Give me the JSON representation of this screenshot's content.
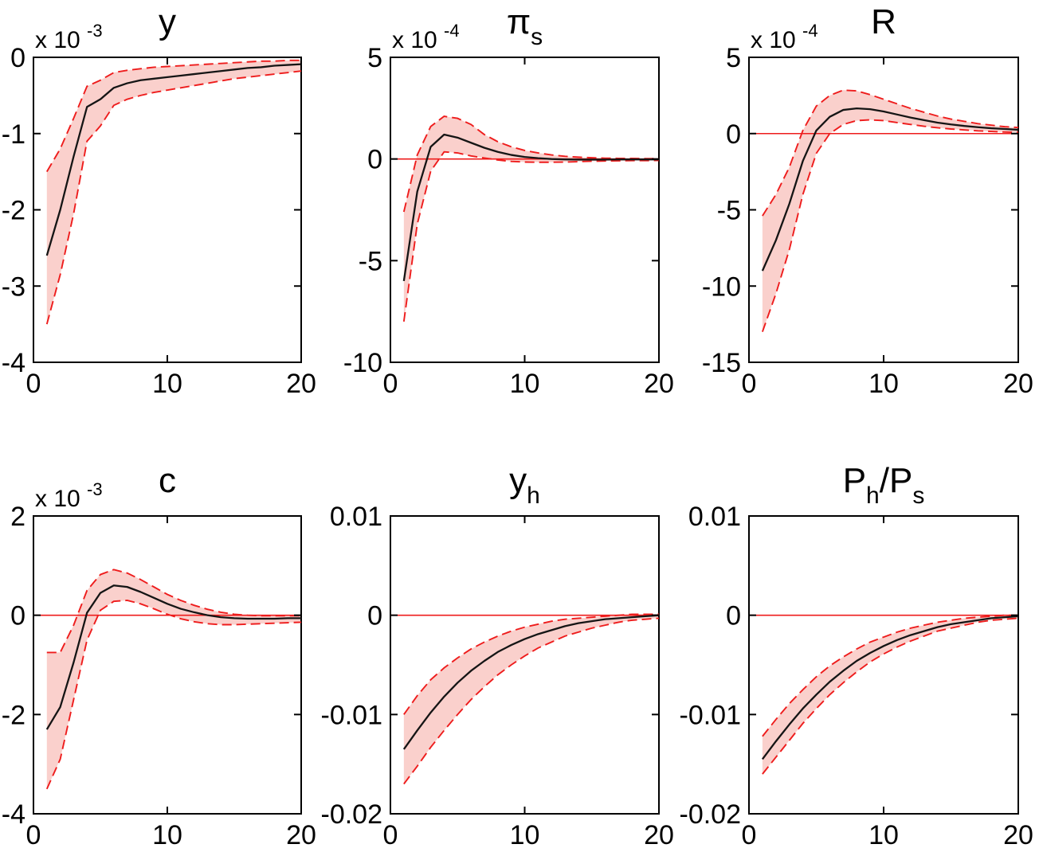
{
  "style": {
    "background": "#ffffff",
    "axis_color": "#000000",
    "tick_label_color": "#000000",
    "median_color": "#151515",
    "band_edge_color": "#ee1c1c",
    "band_fill_color": "#fad0cc",
    "zero_line_color": "#ee1c1c"
  },
  "chart_data": [
    {
      "id": "y",
      "type": "line",
      "title_parts": [
        {
          "text": "y",
          "sub": false
        }
      ],
      "scale_label": {
        "base": "x 10",
        "exponent": "-3"
      },
      "xlim": [
        0,
        20
      ],
      "ylim": [
        -4,
        0
      ],
      "xticks": [
        {
          "v": 0,
          "label": "0"
        },
        {
          "v": 10,
          "label": "10"
        },
        {
          "v": 20,
          "label": "20"
        }
      ],
      "yticks": [
        {
          "v": 0,
          "label": "0"
        },
        {
          "v": -1,
          "label": "-1"
        },
        {
          "v": -2,
          "label": "-2"
        },
        {
          "v": -3,
          "label": "-3"
        },
        {
          "v": -4,
          "label": "-4"
        }
      ],
      "zero_line": false,
      "x": [
        1,
        2,
        3,
        4,
        5,
        6,
        7,
        8,
        9,
        10,
        11,
        12,
        13,
        14,
        15,
        16,
        17,
        18,
        19,
        20
      ],
      "series": [
        {
          "name": "median",
          "style": "solid-black",
          "values": [
            -2.6,
            -2.0,
            -1.3,
            -0.65,
            -0.55,
            -0.4,
            -0.34,
            -0.3,
            -0.28,
            -0.26,
            -0.24,
            -0.22,
            -0.2,
            -0.18,
            -0.16,
            -0.14,
            -0.13,
            -0.11,
            -0.1,
            -0.09
          ]
        },
        {
          "name": "lower-band",
          "style": "dashed-red",
          "values": [
            -3.5,
            -2.85,
            -2.05,
            -1.1,
            -0.9,
            -0.63,
            -0.55,
            -0.5,
            -0.46,
            -0.43,
            -0.4,
            -0.37,
            -0.34,
            -0.31,
            -0.28,
            -0.26,
            -0.24,
            -0.22,
            -0.2,
            -0.18
          ]
        },
        {
          "name": "upper-band",
          "style": "dashed-red",
          "values": [
            -1.5,
            -1.2,
            -0.8,
            -0.38,
            -0.3,
            -0.2,
            -0.17,
            -0.15,
            -0.13,
            -0.12,
            -0.11,
            -0.1,
            -0.09,
            -0.08,
            -0.07,
            -0.06,
            -0.05,
            -0.05,
            -0.04,
            -0.04
          ]
        }
      ]
    },
    {
      "id": "pi_s",
      "type": "line",
      "title_parts": [
        {
          "text": "π",
          "sub": false
        },
        {
          "text": "s",
          "sub": true
        }
      ],
      "scale_label": {
        "base": "x 10",
        "exponent": "-4"
      },
      "xlim": [
        0,
        20
      ],
      "ylim": [
        -10,
        5
      ],
      "xticks": [
        {
          "v": 0,
          "label": "0"
        },
        {
          "v": 10,
          "label": "10"
        },
        {
          "v": 20,
          "label": "20"
        }
      ],
      "yticks": [
        {
          "v": 5,
          "label": "5"
        },
        {
          "v": 0,
          "label": "0"
        },
        {
          "v": -5,
          "label": "-5"
        },
        {
          "v": -10,
          "label": "-10"
        }
      ],
      "zero_line": true,
      "x": [
        1,
        2,
        3,
        4,
        5,
        6,
        7,
        8,
        9,
        10,
        11,
        12,
        13,
        14,
        15,
        16,
        17,
        18,
        19,
        20
      ],
      "series": [
        {
          "name": "median",
          "style": "solid-black",
          "values": [
            -6.0,
            -1.6,
            0.6,
            1.2,
            1.05,
            0.8,
            0.55,
            0.35,
            0.2,
            0.1,
            0.04,
            0.0,
            -0.02,
            -0.03,
            -0.03,
            -0.03,
            -0.02,
            -0.02,
            -0.02,
            -0.02
          ]
        },
        {
          "name": "lower-band",
          "style": "dashed-red",
          "values": [
            -8.0,
            -3.2,
            -0.6,
            0.35,
            0.3,
            0.15,
            0.05,
            -0.05,
            -0.12,
            -0.15,
            -0.16,
            -0.16,
            -0.15,
            -0.13,
            -0.11,
            -0.1,
            -0.09,
            -0.08,
            -0.08,
            -0.07
          ]
        },
        {
          "name": "upper-band",
          "style": "dashed-red",
          "values": [
            -2.6,
            0.2,
            1.6,
            2.1,
            2.0,
            1.7,
            1.2,
            0.85,
            0.6,
            0.42,
            0.3,
            0.2,
            0.13,
            0.09,
            0.06,
            0.04,
            0.03,
            0.03,
            0.02,
            0.02
          ]
        }
      ]
    },
    {
      "id": "R",
      "type": "line",
      "title_parts": [
        {
          "text": "R",
          "sub": false
        }
      ],
      "scale_label": {
        "base": "x 10",
        "exponent": "-4"
      },
      "xlim": [
        0,
        20
      ],
      "ylim": [
        -15,
        5
      ],
      "xticks": [
        {
          "v": 0,
          "label": "0"
        },
        {
          "v": 10,
          "label": "10"
        },
        {
          "v": 20,
          "label": "20"
        }
      ],
      "yticks": [
        {
          "v": 5,
          "label": "5"
        },
        {
          "v": 0,
          "label": "0"
        },
        {
          "v": -5,
          "label": "-5"
        },
        {
          "v": -10,
          "label": "-10"
        },
        {
          "v": -15,
          "label": "-15"
        }
      ],
      "zero_line": true,
      "x": [
        1,
        2,
        3,
        4,
        5,
        6,
        7,
        8,
        9,
        10,
        11,
        12,
        13,
        14,
        15,
        16,
        17,
        18,
        19,
        20
      ],
      "series": [
        {
          "name": "median",
          "style": "solid-black",
          "values": [
            -9.0,
            -7.0,
            -4.6,
            -1.8,
            0.2,
            1.1,
            1.55,
            1.65,
            1.6,
            1.45,
            1.25,
            1.05,
            0.88,
            0.72,
            0.6,
            0.5,
            0.42,
            0.35,
            0.3,
            0.25
          ]
        },
        {
          "name": "lower-band",
          "style": "dashed-red",
          "values": [
            -13.0,
            -10.5,
            -7.6,
            -4.0,
            -1.3,
            0.0,
            0.6,
            0.85,
            0.9,
            0.85,
            0.72,
            0.6,
            0.48,
            0.38,
            0.3,
            0.24,
            0.18,
            0.14,
            0.1,
            0.08
          ]
        },
        {
          "name": "upper-band",
          "style": "dashed-red",
          "values": [
            -5.4,
            -4.0,
            -2.2,
            0.2,
            1.8,
            2.5,
            2.85,
            2.8,
            2.55,
            2.25,
            1.95,
            1.65,
            1.4,
            1.15,
            0.95,
            0.8,
            0.65,
            0.55,
            0.45,
            0.4
          ]
        }
      ]
    },
    {
      "id": "c",
      "type": "line",
      "title_parts": [
        {
          "text": "c",
          "sub": false
        }
      ],
      "scale_label": {
        "base": "x 10",
        "exponent": "-3"
      },
      "xlim": [
        0,
        20
      ],
      "ylim": [
        -4,
        2
      ],
      "xticks": [
        {
          "v": 0,
          "label": "0"
        },
        {
          "v": 10,
          "label": "10"
        },
        {
          "v": 20,
          "label": "20"
        }
      ],
      "yticks": [
        {
          "v": 2,
          "label": "2"
        },
        {
          "v": 0,
          "label": "0"
        },
        {
          "v": -2,
          "label": "-2"
        },
        {
          "v": -4,
          "label": "-4"
        }
      ],
      "zero_line": true,
      "x": [
        1,
        2,
        3,
        4,
        5,
        6,
        7,
        8,
        9,
        10,
        11,
        12,
        13,
        14,
        15,
        16,
        17,
        18,
        19,
        20
      ],
      "series": [
        {
          "name": "median",
          "style": "solid-black",
          "values": [
            -2.3,
            -1.85,
            -0.95,
            0.05,
            0.45,
            0.6,
            0.57,
            0.47,
            0.35,
            0.23,
            0.13,
            0.06,
            0.0,
            -0.04,
            -0.06,
            -0.07,
            -0.07,
            -0.07,
            -0.06,
            -0.06
          ]
        },
        {
          "name": "lower-band",
          "style": "dashed-red",
          "values": [
            -3.5,
            -2.9,
            -1.7,
            -0.5,
            0.1,
            0.28,
            0.3,
            0.23,
            0.13,
            0.02,
            -0.07,
            -0.13,
            -0.17,
            -0.19,
            -0.19,
            -0.18,
            -0.17,
            -0.16,
            -0.15,
            -0.14
          ]
        },
        {
          "name": "upper-band",
          "style": "dashed-red",
          "values": [
            -0.75,
            -0.75,
            -0.2,
            0.5,
            0.82,
            0.92,
            0.85,
            0.72,
            0.57,
            0.42,
            0.3,
            0.2,
            0.12,
            0.06,
            0.02,
            0.0,
            -0.01,
            -0.01,
            -0.01,
            -0.01
          ]
        }
      ]
    },
    {
      "id": "y_h",
      "type": "line",
      "title_parts": [
        {
          "text": "y",
          "sub": false
        },
        {
          "text": "h",
          "sub": true
        }
      ],
      "scale_label": null,
      "xlim": [
        0,
        20
      ],
      "ylim": [
        -0.02,
        0.01
      ],
      "xticks": [
        {
          "v": 0,
          "label": "0"
        },
        {
          "v": 10,
          "label": "10"
        },
        {
          "v": 20,
          "label": "20"
        }
      ],
      "yticks": [
        {
          "v": 0.01,
          "label": "0.01"
        },
        {
          "v": 0,
          "label": "0"
        },
        {
          "v": -0.01,
          "label": "-0.01"
        },
        {
          "v": -0.02,
          "label": "-0.02"
        }
      ],
      "zero_line": true,
      "x": [
        1,
        2,
        3,
        4,
        5,
        6,
        7,
        8,
        9,
        10,
        11,
        12,
        13,
        14,
        15,
        16,
        17,
        18,
        19,
        20
      ],
      "series": [
        {
          "name": "median",
          "style": "solid-black",
          "values": [
            -0.0135,
            -0.0116,
            -0.0098,
            -0.0082,
            -0.0068,
            -0.0056,
            -0.0046,
            -0.0037,
            -0.003,
            -0.0024,
            -0.0019,
            -0.0015,
            -0.0011,
            -0.0008,
            -0.0006,
            -0.0004,
            -0.0003,
            -0.0002,
            -0.0001,
            0.0
          ]
        },
        {
          "name": "lower-band",
          "style": "dashed-red",
          "values": [
            -0.017,
            -0.0152,
            -0.0133,
            -0.0116,
            -0.01,
            -0.0085,
            -0.0072,
            -0.006,
            -0.005,
            -0.0041,
            -0.0033,
            -0.0027,
            -0.0021,
            -0.0017,
            -0.0013,
            -0.001,
            -0.0007,
            -0.0005,
            -0.0004,
            -0.0003
          ]
        },
        {
          "name": "upper-band",
          "style": "dashed-red",
          "values": [
            -0.01,
            -0.0081,
            -0.0065,
            -0.0053,
            -0.0043,
            -0.0034,
            -0.0027,
            -0.0021,
            -0.0016,
            -0.0012,
            -0.0009,
            -0.0006,
            -0.0004,
            -0.0003,
            -0.0002,
            -0.0001,
            0.0,
            0.0001,
            0.0001,
            0.0001
          ]
        }
      ]
    },
    {
      "id": "Ph_over_Ps",
      "type": "line",
      "title_parts": [
        {
          "text": "P",
          "sub": false
        },
        {
          "text": "h",
          "sub": true
        },
        {
          "text": "/P",
          "sub": false
        },
        {
          "text": "s",
          "sub": true
        }
      ],
      "scale_label": null,
      "xlim": [
        0,
        20
      ],
      "ylim": [
        -0.02,
        0.01
      ],
      "xticks": [
        {
          "v": 0,
          "label": "0"
        },
        {
          "v": 10,
          "label": "10"
        },
        {
          "v": 20,
          "label": "20"
        }
      ],
      "yticks": [
        {
          "v": 0.01,
          "label": "0.01"
        },
        {
          "v": 0,
          "label": "0"
        },
        {
          "v": -0.01,
          "label": "-0.01"
        },
        {
          "v": -0.02,
          "label": "-0.02"
        }
      ],
      "zero_line": true,
      "x": [
        1,
        2,
        3,
        4,
        5,
        6,
        7,
        8,
        9,
        10,
        11,
        12,
        13,
        14,
        15,
        16,
        17,
        18,
        19,
        20
      ],
      "series": [
        {
          "name": "median",
          "style": "solid-black",
          "values": [
            -0.0145,
            -0.0127,
            -0.011,
            -0.0094,
            -0.008,
            -0.0067,
            -0.0056,
            -0.0046,
            -0.0038,
            -0.0031,
            -0.0025,
            -0.002,
            -0.0016,
            -0.0012,
            -0.0009,
            -0.0007,
            -0.0005,
            -0.0003,
            -0.0002,
            -0.0001
          ]
        },
        {
          "name": "lower-band",
          "style": "dashed-red",
          "values": [
            -0.016,
            -0.0143,
            -0.0126,
            -0.0109,
            -0.0094,
            -0.008,
            -0.0068,
            -0.0057,
            -0.0047,
            -0.0039,
            -0.0032,
            -0.0026,
            -0.0021,
            -0.0016,
            -0.0013,
            -0.001,
            -0.0007,
            -0.0005,
            -0.0004,
            -0.0003
          ]
        },
        {
          "name": "upper-band",
          "style": "dashed-red",
          "values": [
            -0.0122,
            -0.0105,
            -0.0089,
            -0.0075,
            -0.0062,
            -0.0051,
            -0.0042,
            -0.0034,
            -0.0027,
            -0.0022,
            -0.0017,
            -0.0013,
            -0.001,
            -0.0007,
            -0.0005,
            -0.0003,
            -0.0002,
            -0.0001,
            0.0,
            0.0
          ]
        }
      ]
    }
  ]
}
